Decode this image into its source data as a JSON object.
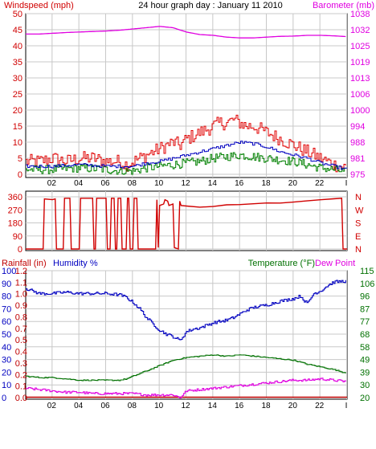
{
  "header": {
    "left": "Windspeed (mph)",
    "center": "24 hour graph day : January 11 2010",
    "right": "Barometer (mb)"
  },
  "colors": {
    "wind_gust": "#e00000",
    "wind_avg": "#0000c0",
    "wind_speed": "#008000",
    "barometer": "#e000e0",
    "direction": "#d00000",
    "rain_axis": "#c00000",
    "humidity": "#0000c0",
    "temperature": "#007000",
    "dewpoint": "#e000e0",
    "grid": "#c8c8c8"
  },
  "x_ticks": [
    "02",
    "04",
    "06",
    "08",
    "10",
    "12",
    "14",
    "16",
    "18",
    "20",
    "22",
    "I"
  ],
  "chart_data": [
    {
      "type": "line",
      "title": "24 hour graph day : January 11 2010",
      "ylabel": "Windspeed (mph)",
      "y2label": "Barometer (mb)",
      "ylim": [
        0,
        50
      ],
      "y2lim": [
        975,
        1038
      ],
      "y_ticks": [
        0,
        5,
        10,
        15,
        20,
        25,
        30,
        35,
        40,
        45,
        50
      ],
      "y2_ticks": [
        "975",
        "981",
        "988",
        "994",
        "1000",
        "1006",
        "1013",
        "1019",
        "1025",
        "1032",
        "1038"
      ],
      "grid": true,
      "series": [
        {
          "x": [
            0,
            1,
            2,
            3,
            4,
            5,
            6,
            7,
            7.5,
            8,
            8.5,
            9,
            9.5,
            10,
            10.5,
            11,
            11.5,
            12,
            12.5,
            13,
            13.5,
            14,
            14.5,
            15,
            15.5,
            16,
            16.5,
            17,
            17.5,
            18,
            18.5,
            19,
            19.5,
            20,
            20.5,
            21,
            21.5,
            22,
            22.5,
            23,
            24
          ],
          "values": [
            4,
            4,
            5,
            4,
            5,
            5,
            4,
            4,
            3,
            4,
            5,
            6,
            7,
            8,
            9,
            10,
            9,
            11,
            12,
            13,
            14,
            15,
            16,
            16,
            17,
            16,
            15,
            15,
            14,
            13,
            12,
            11,
            10,
            9,
            8,
            7,
            6,
            5,
            4,
            3,
            2
          ]
        },
        {
          "x": [
            0,
            2,
            4,
            6,
            7,
            8,
            9,
            10,
            11,
            12,
            13,
            14,
            15,
            16,
            17,
            18,
            19,
            20,
            21,
            22,
            23,
            24
          ],
          "values": [
            2.5,
            2.5,
            3,
            2.5,
            2.5,
            2.5,
            3.5,
            4,
            5,
            6,
            7,
            8,
            9,
            10,
            9.5,
            8.5,
            7,
            6,
            5,
            3.5,
            2.5,
            1.5
          ]
        },
        {
          "x": [
            0,
            2,
            4,
            6,
            7,
            8,
            9,
            10,
            11,
            12,
            13,
            14,
            15,
            16,
            17,
            18,
            19,
            20,
            21,
            22,
            23,
            24
          ],
          "values": [
            1.5,
            1.5,
            2,
            1.5,
            1,
            1,
            2,
            2.5,
            3,
            3.5,
            4,
            5,
            5.5,
            6,
            5.5,
            5,
            4.5,
            4,
            3,
            2,
            1.5,
            0.5
          ]
        },
        {
          "x": [
            0,
            1,
            2,
            3,
            4,
            5,
            6,
            7,
            8,
            9,
            10,
            11,
            12,
            13,
            14,
            15,
            16,
            17,
            18,
            19,
            20,
            21,
            22,
            23,
            24
          ],
          "values": [
            1030,
            1030,
            1030.3,
            1030.6,
            1030.8,
            1031,
            1031.2,
            1031.5,
            1032,
            1032.5,
            1033,
            1032.5,
            1030.8,
            1029.8,
            1029.5,
            1028.8,
            1028.5,
            1028.5,
            1028.8,
            1029.1,
            1029.2,
            1029.5,
            1029.5,
            1029.3,
            1029
          ]
        }
      ]
    },
    {
      "type": "line",
      "y_ticks": [
        "0",
        "90",
        "180",
        "270",
        "360"
      ],
      "y2_ticks": [
        "N",
        "W",
        "S",
        "E",
        "N"
      ],
      "ylim": [
        0,
        360
      ],
      "grid": true,
      "series": [
        {
          "x": [
            0,
            1,
            1.3,
            1.4,
            2,
            2.2,
            2.3,
            2.8,
            2.9,
            3.3,
            3.4,
            4.0,
            4.1,
            5.0,
            5.1,
            5.2,
            5.3,
            6.0,
            6.1,
            6.3,
            6.4,
            6.6,
            6.7,
            6.8,
            6.9,
            7.1,
            7.2,
            7.5,
            7.6,
            7.7,
            7.8,
            8.0,
            8.1,
            8.3,
            8.4,
            9.7,
            9.8,
            9.9,
            10.0,
            10.3,
            10.4,
            10.6,
            10.7,
            11.0,
            11.1,
            11.4,
            11.5,
            11.6,
            12,
            13,
            14,
            15,
            16,
            17,
            18,
            19,
            20,
            21,
            22,
            23,
            23.6,
            23.7,
            24
          ],
          "values": [
            0,
            0,
            0,
            345,
            340,
            345,
            0,
            0,
            350,
            350,
            0,
            0,
            350,
            350,
            0,
            0,
            350,
            350,
            0,
            0,
            350,
            350,
            0,
            0,
            350,
            350,
            0,
            0,
            350,
            350,
            0,
            0,
            350,
            350,
            0,
            0,
            340,
            10,
            300,
            310,
            340,
            330,
            300,
            310,
            10,
            0,
            330,
            300,
            295,
            290,
            295,
            300,
            305,
            310,
            315,
            320,
            325,
            330,
            335,
            345,
            350,
            0,
            0
          ]
        }
      ]
    },
    {
      "type": "line",
      "ylabel": "Rainfall (in)",
      "ylabel2": "Humidity %",
      "y2label": "Temperature (°F)",
      "y2label2": "Dew Point",
      "humidity_ticks": [
        "0",
        "10",
        "20",
        "30",
        "40",
        "50",
        "60",
        "70",
        "80",
        "90",
        "100"
      ],
      "rain_ticks": [
        "0.0",
        "0.1",
        "0.2",
        "0.3",
        "0.4",
        "0.5",
        "0.7",
        "0.8",
        "0.9",
        "1.0",
        "1.1",
        "1.2"
      ],
      "temp_ticks": [
        "20",
        "30",
        "39",
        "49",
        "58",
        "68",
        "77",
        "87",
        "96",
        "106",
        "115"
      ],
      "ylim": [
        0,
        100
      ],
      "y2lim": [
        20,
        115
      ],
      "grid": true,
      "series": [
        {
          "x": [
            0,
            0.5,
            1,
            2,
            3,
            4,
            5,
            6,
            7,
            7.5,
            8,
            8.5,
            9,
            9.5,
            10,
            10.5,
            11,
            11.5,
            12,
            12.5,
            13,
            14,
            15,
            15.5,
            16,
            16.5,
            17,
            18,
            19,
            20,
            20.5,
            21,
            21.5,
            22,
            22.5,
            23,
            24
          ],
          "values": [
            86,
            84,
            82,
            82,
            83,
            82,
            82,
            82,
            81,
            79,
            75,
            70,
            63,
            58,
            53,
            50,
            48,
            45,
            52,
            54,
            55,
            59,
            61,
            63,
            66,
            69,
            71,
            73,
            76,
            78,
            80,
            74,
            82,
            84,
            88,
            91,
            92
          ]
        },
        {
          "x": [
            0,
            1,
            2,
            3,
            4,
            5,
            6,
            7,
            7.5,
            8,
            9,
            10,
            11,
            12,
            13,
            14,
            15,
            16,
            17,
            18,
            19,
            20,
            21,
            22,
            23,
            24
          ],
          "values": [
            36,
            35,
            35,
            34,
            33,
            33,
            33,
            33,
            34,
            36,
            40,
            44,
            48,
            50,
            51,
            52,
            51,
            52,
            51,
            50,
            49,
            48,
            45,
            43,
            41,
            38
          ]
        },
        {
          "x": [
            0,
            1,
            2,
            3,
            4,
            5,
            6,
            7,
            8,
            9,
            10,
            11,
            11.5,
            12,
            13,
            14,
            15,
            16,
            17,
            18,
            19,
            20,
            21,
            22,
            23,
            24
          ],
          "values": [
            27,
            26,
            25,
            24,
            24,
            23,
            23,
            23,
            23,
            22,
            22,
            22,
            20,
            25,
            26,
            27,
            28,
            29,
            30,
            31,
            32,
            33,
            33,
            34,
            33,
            32
          ]
        },
        {
          "x": [
            0,
            24
          ],
          "values": [
            0,
            0
          ]
        }
      ]
    }
  ]
}
